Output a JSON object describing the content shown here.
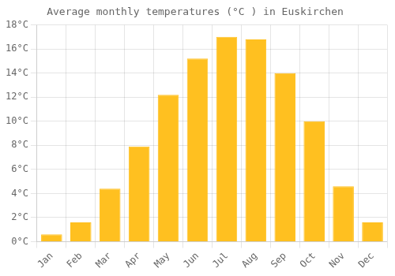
{
  "chart_data": {
    "type": "bar",
    "title": "Average monthly temperatures (°C ) in Euskirchen",
    "categories": [
      "Jan",
      "Feb",
      "Mar",
      "Apr",
      "May",
      "Jun",
      "Jul",
      "Aug",
      "Sep",
      "Oct",
      "Nov",
      "Dec"
    ],
    "values": [
      0.6,
      1.6,
      4.4,
      7.9,
      12.2,
      15.2,
      17.0,
      16.8,
      14.0,
      10.0,
      4.6,
      1.6
    ],
    "color": "#FFC020",
    "ylim": [
      0,
      18
    ],
    "yticks": [
      {
        "value": 0,
        "label": "0°C"
      },
      {
        "value": 2,
        "label": "2°C"
      },
      {
        "value": 4,
        "label": "4°C"
      },
      {
        "value": 6,
        "label": "6°C"
      },
      {
        "value": 8,
        "label": "8°C"
      },
      {
        "value": 10,
        "label": "10°C"
      },
      {
        "value": 12,
        "label": "12°C"
      },
      {
        "value": 14,
        "label": "14°C"
      },
      {
        "value": 16,
        "label": "16°C"
      },
      {
        "value": 18,
        "label": "18°C"
      }
    ],
    "grid": true
  }
}
